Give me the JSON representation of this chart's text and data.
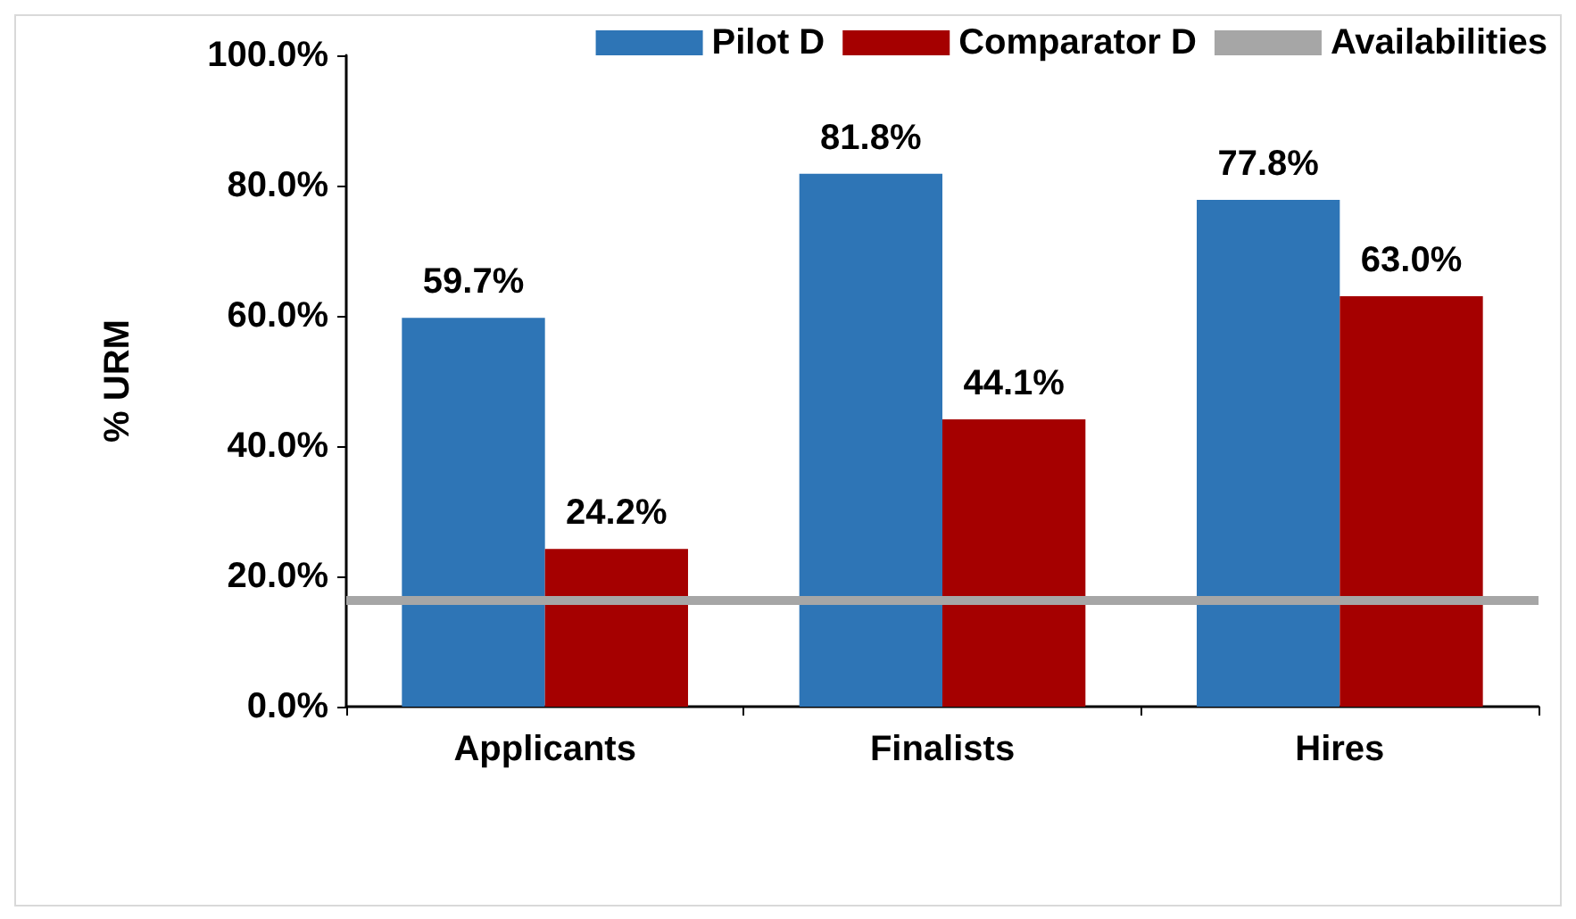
{
  "chart_data": {
    "type": "bar",
    "ylabel": "% URM",
    "categories": [
      "Applicants",
      "Finalists",
      "Hires"
    ],
    "series": [
      {
        "name": "Pilot D",
        "color": "#2e75b6",
        "values": [
          59.7,
          81.8,
          77.8
        ],
        "value_labels": [
          "59.7%",
          "81.8%",
          "77.8%"
        ]
      },
      {
        "name": "Comparator D",
        "color": "#a50000",
        "values": [
          24.2,
          44.1,
          63.0
        ],
        "value_labels": [
          "24.2%",
          "44.1%",
          "63.0%"
        ]
      }
    ],
    "ylim": [
      0,
      100
    ],
    "yticks": [
      {
        "value": 0,
        "label": "0.0%"
      },
      {
        "value": 20,
        "label": "20.0%"
      },
      {
        "value": 40,
        "label": "40.0%"
      },
      {
        "value": 60,
        "label": "60.0%"
      },
      {
        "value": 80,
        "label": "80.0%"
      },
      {
        "value": 100,
        "label": "100.0%"
      }
    ],
    "ref_lines": [
      {
        "axis": "y",
        "value": 16.5,
        "label": "Availabilities",
        "color": "#a6a6a6"
      }
    ],
    "legend": "top",
    "grid": false
  }
}
